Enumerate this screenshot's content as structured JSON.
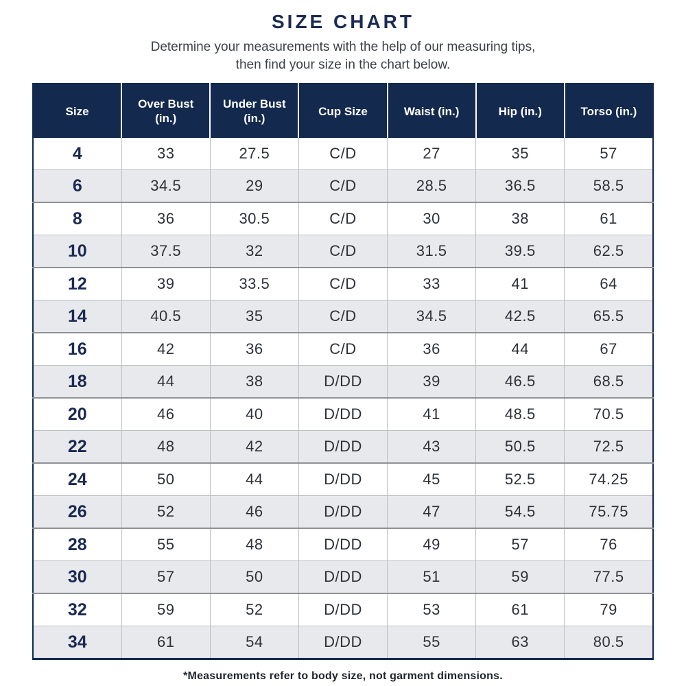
{
  "page": {
    "title": "SIZE CHART",
    "subtitle_line1": "Determine your measurements with the help of our measuring tips,",
    "subtitle_line2": "then find your size in the chart below.",
    "footnote": "*Measurements refer to body size, not garment dimensions."
  },
  "colors": {
    "header_navy": "#13294e",
    "title_navy": "#1b2a52",
    "shaded_row": "#e7e9ed",
    "white_row": "#ffffff",
    "grid_light": "#bcbfc4",
    "grid_dark": "#8e9196",
    "body_text": "#2d3137"
  },
  "table": {
    "columns": [
      "Size",
      "Over Bust (in.)",
      "Under Bust (in.)",
      "Cup Size",
      "Waist (in.)",
      "Hip (in.)",
      "Torso (in.)"
    ],
    "rows": [
      {
        "size": "4",
        "values": [
          "33",
          "27.5",
          "C/D",
          "27",
          "35",
          "57"
        ]
      },
      {
        "size": "6",
        "values": [
          "34.5",
          "29",
          "C/D",
          "28.5",
          "36.5",
          "58.5"
        ]
      },
      {
        "size": "8",
        "values": [
          "36",
          "30.5",
          "C/D",
          "30",
          "38",
          "61"
        ]
      },
      {
        "size": "10",
        "values": [
          "37.5",
          "32",
          "C/D",
          "31.5",
          "39.5",
          "62.5"
        ]
      },
      {
        "size": "12",
        "values": [
          "39",
          "33.5",
          "C/D",
          "33",
          "41",
          "64"
        ]
      },
      {
        "size": "14",
        "values": [
          "40.5",
          "35",
          "C/D",
          "34.5",
          "42.5",
          "65.5"
        ]
      },
      {
        "size": "16",
        "values": [
          "42",
          "36",
          "C/D",
          "36",
          "44",
          "67"
        ]
      },
      {
        "size": "18",
        "values": [
          "44",
          "38",
          "D/DD",
          "39",
          "46.5",
          "68.5"
        ]
      },
      {
        "size": "20",
        "values": [
          "46",
          "40",
          "D/DD",
          "41",
          "48.5",
          "70.5"
        ]
      },
      {
        "size": "22",
        "values": [
          "48",
          "42",
          "D/DD",
          "43",
          "50.5",
          "72.5"
        ]
      },
      {
        "size": "24",
        "values": [
          "50",
          "44",
          "D/DD",
          "45",
          "52.5",
          "74.25"
        ]
      },
      {
        "size": "26",
        "values": [
          "52",
          "46",
          "D/DD",
          "47",
          "54.5",
          "75.75"
        ]
      },
      {
        "size": "28",
        "values": [
          "55",
          "48",
          "D/DD",
          "49",
          "57",
          "76"
        ]
      },
      {
        "size": "30",
        "values": [
          "57",
          "50",
          "D/DD",
          "51",
          "59",
          "77.5"
        ]
      },
      {
        "size": "32",
        "values": [
          "59",
          "52",
          "D/DD",
          "53",
          "61",
          "79"
        ]
      },
      {
        "size": "34",
        "values": [
          "61",
          "54",
          "D/DD",
          "55",
          "63",
          "80.5"
        ]
      }
    ]
  }
}
